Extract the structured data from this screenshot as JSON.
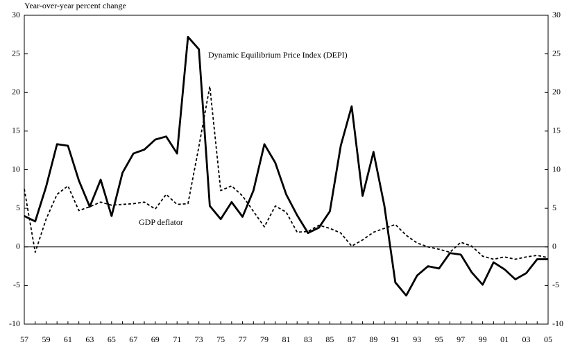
{
  "chart_data": {
    "type": "line",
    "y_axis_label": "Year-over-year percent change",
    "categories": [
      "57",
      null,
      "59",
      null,
      "61",
      null,
      "63",
      null,
      "65",
      null,
      "67",
      null,
      "69",
      null,
      "71",
      null,
      "73",
      null,
      "75",
      null,
      "77",
      null,
      "79",
      null,
      "81",
      null,
      "83",
      null,
      "85",
      null,
      "87",
      null,
      "89",
      null,
      "91",
      null,
      "93",
      null,
      "95",
      null,
      "97",
      null,
      "99",
      null,
      "01",
      null,
      "03",
      null,
      "05"
    ],
    "series": [
      {
        "name": "Dynamic Equilibrium Price Index (DEPI)",
        "color": "#000000",
        "line_style": "solid",
        "values": [
          4.0,
          3.3,
          7.8,
          13.3,
          13.1,
          8.6,
          5.2,
          8.7,
          4.0,
          9.6,
          12.1,
          12.6,
          13.9,
          14.3,
          12.1,
          27.2,
          25.6,
          5.3,
          3.6,
          5.8,
          3.9,
          7.3,
          13.3,
          10.9,
          6.8,
          4.1,
          1.8,
          2.5,
          4.6,
          13.1,
          18.2,
          6.6,
          12.3,
          5.3,
          -4.6,
          -6.3,
          -3.7,
          -2.5,
          -2.8,
          -0.8,
          -1.0,
          -3.3,
          -4.9,
          -2.0,
          -2.9,
          -4.2,
          -3.4,
          -1.6,
          -1.6
        ]
      },
      {
        "name": "GDP deflator",
        "color": "#000000",
        "line_style": "dashed",
        "values": [
          7.5,
          -0.7,
          3.6,
          6.8,
          7.9,
          4.7,
          5.2,
          5.8,
          5.4,
          5.5,
          5.6,
          5.8,
          4.9,
          6.8,
          5.5,
          5.6,
          13.0,
          20.8,
          7.3,
          7.9,
          6.6,
          4.6,
          2.6,
          5.3,
          4.5,
          1.9,
          2.0,
          2.8,
          2.4,
          1.8,
          0.1,
          0.9,
          1.9,
          2.4,
          2.9,
          1.5,
          0.5,
          0.0,
          -0.3,
          -0.7,
          0.6,
          0.1,
          -1.2,
          -1.6,
          -1.3,
          -1.6,
          -1.3,
          -1.1,
          -1.4
        ]
      }
    ],
    "ylim": [
      -10,
      30
    ],
    "yticks": [
      -10,
      -5,
      0,
      5,
      10,
      15,
      20,
      25,
      30
    ],
    "y2lim": [
      -10,
      30
    ],
    "y2ticks": [
      -10,
      -5,
      0,
      5,
      10,
      15,
      20,
      25,
      30
    ]
  }
}
